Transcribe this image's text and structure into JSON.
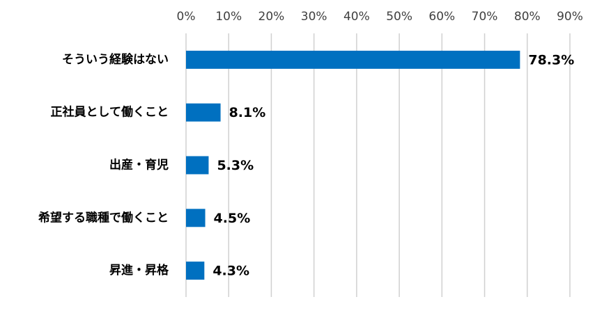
{
  "chart_data": {
    "type": "bar",
    "orientation": "horizontal",
    "categories": [
      "そういう経験はない",
      "正社員として働くこと",
      "出産・育児",
      "希望する職種で働くこと",
      "昇進・昇格"
    ],
    "values": [
      78.3,
      8.1,
      5.3,
      4.5,
      4.3
    ],
    "value_labels": [
      "78.3%",
      "8.1%",
      "5.3%",
      "4.5%",
      "4.3%"
    ],
    "color": "#0070c0",
    "xlim": [
      0,
      90
    ],
    "xticks": [
      {
        "value": 0,
        "label": "0%"
      },
      {
        "value": 10,
        "label": "10%"
      },
      {
        "value": 20,
        "label": "20%"
      },
      {
        "value": 30,
        "label": "30%"
      },
      {
        "value": 40,
        "label": "40%"
      },
      {
        "value": 50,
        "label": "50%"
      },
      {
        "value": 60,
        "label": "60%"
      },
      {
        "value": 70,
        "label": "70%"
      },
      {
        "value": 80,
        "label": "80%"
      },
      {
        "value": 90,
        "label": "90%"
      }
    ],
    "grid": true
  }
}
